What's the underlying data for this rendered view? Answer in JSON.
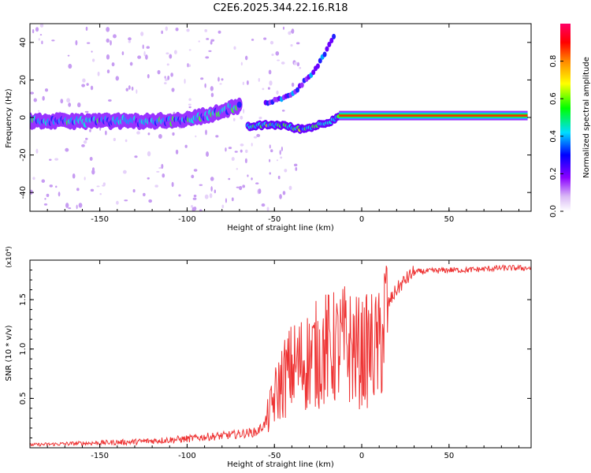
{
  "figure": {
    "title": "C2E6.2025.344.22.16.R18"
  },
  "chart_data": [
    {
      "type": "heatmap",
      "title": "C2E6.2025.344.22.16.R18",
      "xlabel": "Height of straight line (km)",
      "ylabel": "Frequency (Hz)",
      "xlim": [
        -190,
        97
      ],
      "ylim": [
        -50,
        50
      ],
      "xticks": [
        -150,
        -100,
        -50,
        0,
        50
      ],
      "yticks": [
        -40,
        -20,
        0,
        20,
        40
      ],
      "features": [
        {
          "name": "weak-doppler-band",
          "x": [
            -190,
            -150,
            -120,
            -100,
            -90,
            -80,
            -75,
            -70
          ],
          "y": [
            -2,
            -2,
            -2,
            -1,
            1,
            3,
            5,
            6
          ]
        },
        {
          "name": "upper-branch",
          "x": [
            -55,
            -45,
            -38,
            -30,
            -25,
            -20,
            -15
          ],
          "y": [
            8,
            10,
            14,
            22,
            28,
            36,
            44
          ]
        },
        {
          "name": "lower-branch",
          "x": [
            -65,
            -55,
            -45,
            -38,
            -32,
            -25,
            -18,
            -13
          ],
          "y": [
            -5,
            -4,
            -4,
            -6,
            -6,
            -4,
            -2,
            1
          ]
        },
        {
          "name": "strong-carrier",
          "x": [
            -13,
            95
          ],
          "y": [
            1,
            1
          ]
        }
      ],
      "colorbar": {
        "label": "Normalized spectral amplitude",
        "ticks": [
          "0.0",
          "0.2",
          "0.4",
          "0.6",
          "0.8"
        ],
        "range": [
          0,
          1
        ]
      }
    },
    {
      "type": "line",
      "xlabel": "Height of straight line (km)",
      "ylabel": "SNR (10 * v/v)",
      "multiplier": "(x10⁴)",
      "xlim": [
        -190,
        97
      ],
      "ylim": [
        0,
        1.9
      ],
      "xticks": [
        -150,
        -100,
        -50,
        0,
        50
      ],
      "yticks": [
        "0.5",
        "1.0",
        "1.5"
      ],
      "series": [
        {
          "name": "SNR",
          "color": "#ee3333",
          "x": [
            -190,
            -170,
            -150,
            -130,
            -110,
            -100,
            -90,
            -80,
            -70,
            -60,
            -55,
            -50,
            -45,
            -40,
            -35,
            -30,
            -25,
            -20,
            -15,
            -10,
            -5,
            0,
            5,
            10,
            15,
            20,
            25,
            30,
            40,
            50,
            60,
            70,
            80,
            90,
            95
          ],
          "y": [
            0.03,
            0.04,
            0.05,
            0.06,
            0.08,
            0.09,
            0.11,
            0.12,
            0.14,
            0.16,
            0.25,
            0.5,
            0.7,
            0.8,
            0.85,
            0.9,
            0.95,
            1.0,
            1.0,
            1.05,
            1.0,
            0.95,
            1.0,
            1.0,
            1.45,
            1.6,
            1.7,
            1.78,
            1.79,
            1.8,
            1.8,
            1.81,
            1.82,
            1.82,
            1.82
          ]
        }
      ]
    }
  ]
}
